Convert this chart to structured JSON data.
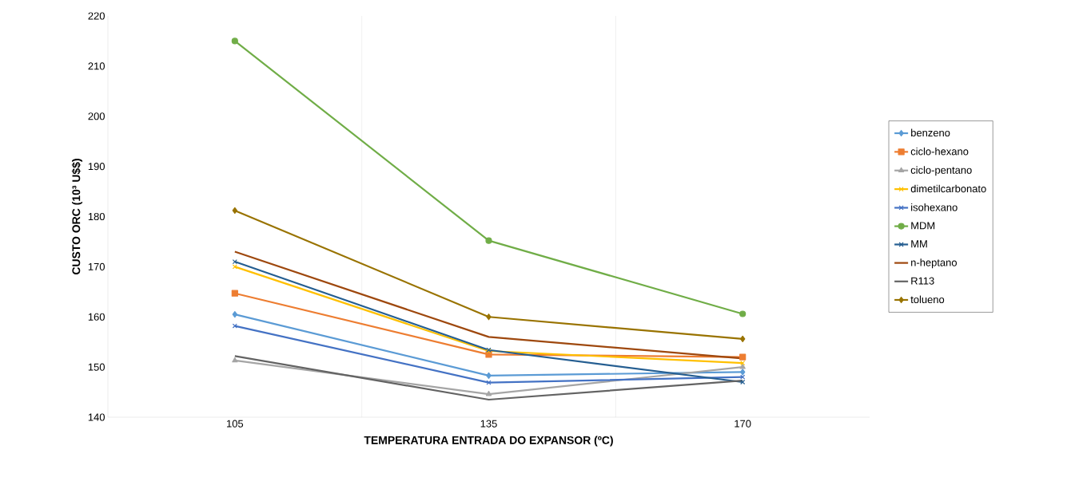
{
  "chart_data": {
    "type": "line",
    "xlabel": "TEMPERATURA ENTRADA DO EXPANSOR (ºC)",
    "ylabel": "CUSTO ORC (10³ U$$)",
    "categories": [
      "105",
      "135",
      "170"
    ],
    "ylim": [
      140,
      220
    ],
    "yticks": [
      140,
      150,
      160,
      170,
      180,
      190,
      200,
      210,
      220
    ],
    "grid": "x",
    "legend": "right",
    "series": [
      {
        "name": "benzeno",
        "color": "#5b9bd5",
        "marker": "diamond",
        "values": [
          160.5,
          148.3,
          149
        ]
      },
      {
        "name": "ciclo-hexano",
        "color": "#ed7d31",
        "marker": "square",
        "values": [
          164.7,
          152.5,
          152
        ]
      },
      {
        "name": "ciclo-pentano",
        "color": "#a5a5a5",
        "marker": "triangle",
        "values": [
          151.3,
          144.6,
          150
        ]
      },
      {
        "name": "dimetilcarbonato",
        "color": "#ffc000",
        "marker": "cross",
        "values": [
          170,
          153.2,
          150.8
        ]
      },
      {
        "name": "isohexano",
        "color": "#4472c4",
        "marker": "cross",
        "values": [
          158.2,
          146.9,
          148
        ]
      },
      {
        "name": "MDM",
        "color": "#70ad47",
        "marker": "circle",
        "values": [
          215,
          175.2,
          160.6
        ]
      },
      {
        "name": "MM",
        "color": "#255e91",
        "marker": "cross",
        "values": [
          171,
          153.4,
          147
        ]
      },
      {
        "name": "n-heptano",
        "color": "#9e480e",
        "marker": "none",
        "values": [
          173,
          156,
          151.7
        ]
      },
      {
        "name": "R113",
        "color": "#636363",
        "marker": "none",
        "values": [
          152.2,
          143.5,
          147.3
        ]
      },
      {
        "name": "tolueno",
        "color": "#997300",
        "marker": "diamond",
        "values": [
          181.2,
          160,
          155.6
        ]
      }
    ]
  }
}
